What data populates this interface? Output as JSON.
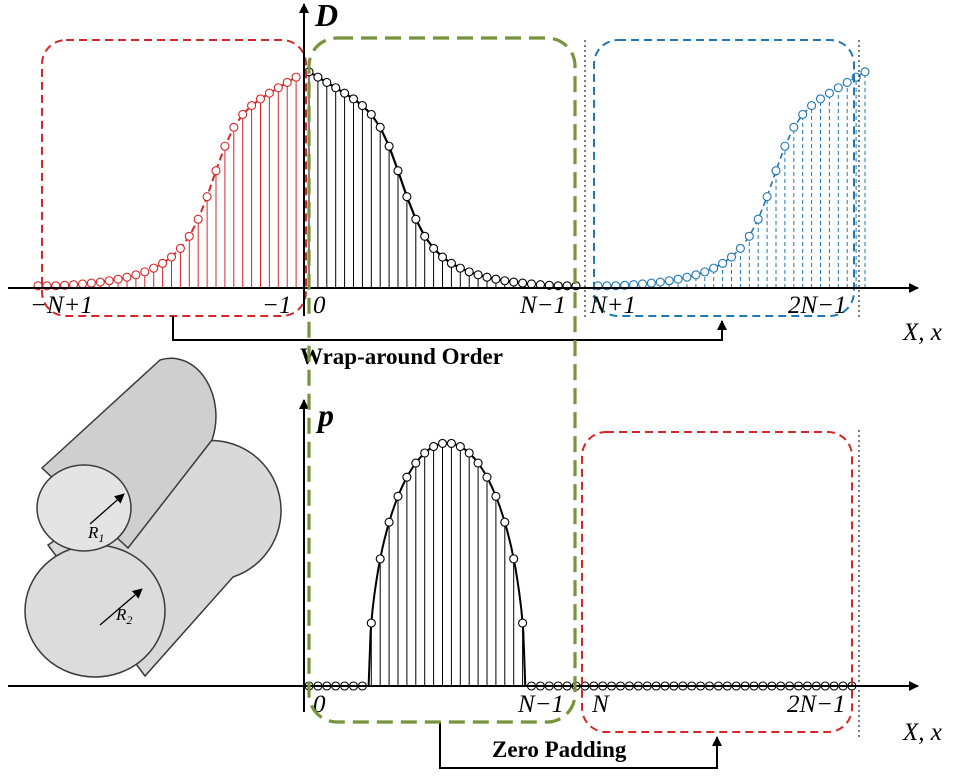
{
  "colors": {
    "left_copy": "#d62728",
    "main": "#000000",
    "right_copy": "#1f77b4",
    "window": "#77933c",
    "zero_pad": "#d62728",
    "cylinder": "#d9d9d9"
  },
  "top_panel": {
    "y_axis_name": "D",
    "x_axis_name": "X, x",
    "tick_labels": [
      "−N+1",
      "−1",
      "0",
      "N−1",
      "N+1",
      "2N−1"
    ],
    "bracket_label": "Wrap-around Order"
  },
  "bottom_panel": {
    "y_axis_name": "p",
    "x_axis_name": "X, x",
    "tick_labels": [
      "0",
      "N−1",
      "N",
      "2N−1"
    ],
    "bracket_label": "Zero Padding"
  },
  "cylinders": {
    "r1_label": "R",
    "r1_sub": "1",
    "r2_label": "R",
    "r2_sub": "2"
  }
}
